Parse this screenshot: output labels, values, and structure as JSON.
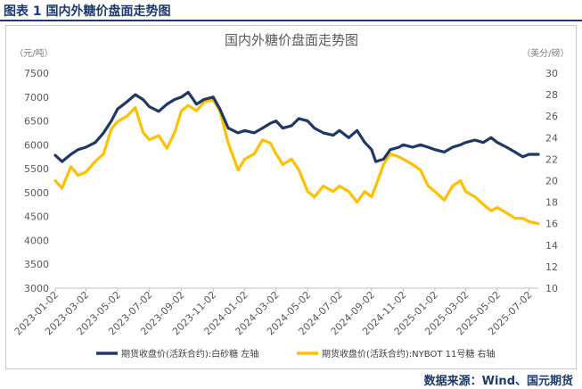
{
  "figure": {
    "label": "图表 1 国内外糖价盘面走势图",
    "source": "数据来源：Wind、国元期货"
  },
  "chart_data": {
    "type": "line",
    "title": "国内外糖价盘面走势图",
    "left_unit": "（元/吨）",
    "right_unit": "（美分/磅）",
    "ylim_left": [
      3000,
      7500
    ],
    "ylim_right": [
      10,
      30
    ],
    "left_ticks": [
      "3000",
      "3500",
      "4000",
      "4500",
      "5000",
      "5500",
      "6000",
      "6500",
      "7000",
      "7500"
    ],
    "right_ticks": [
      "10",
      "12",
      "14",
      "16",
      "18",
      "20",
      "22",
      "24",
      "26",
      "28",
      "30"
    ],
    "x_ticks": [
      "2023-01-02",
      "2023-03-02",
      "2023-05-02",
      "2023-07-02",
      "2023-09-02",
      "2023-11-02",
      "2024-01-02",
      "2024-03-02",
      "2024-05-02",
      "2024-07-02",
      "2024-09-02",
      "2024-11-02",
      "2025-01-02",
      "2025-03-02",
      "2025-05-02",
      "2025-07-02"
    ],
    "x_range": [
      "2023-01-02",
      "2025-07-20"
    ],
    "grid": false,
    "legend_position": "bottom",
    "series": [
      {
        "name": "期货收盘价(活跃合约):白砂糖  左轴",
        "axis": "left",
        "color": "#1f3864",
        "points": [
          [
            "2023-01-02",
            5780
          ],
          [
            "2023-01-15",
            5650
          ],
          [
            "2023-02-01",
            5800
          ],
          [
            "2023-02-15",
            5900
          ],
          [
            "2023-03-02",
            5950
          ],
          [
            "2023-03-20",
            6050
          ],
          [
            "2023-04-05",
            6250
          ],
          [
            "2023-04-20",
            6500
          ],
          [
            "2023-05-02",
            6750
          ],
          [
            "2023-05-20",
            6900
          ],
          [
            "2023-06-05",
            7050
          ],
          [
            "2023-06-20",
            6950
          ],
          [
            "2023-07-02",
            6800
          ],
          [
            "2023-07-20",
            6700
          ],
          [
            "2023-08-05",
            6850
          ],
          [
            "2023-08-20",
            6950
          ],
          [
            "2023-09-02",
            7000
          ],
          [
            "2023-09-15",
            7100
          ],
          [
            "2023-10-01",
            6850
          ],
          [
            "2023-10-15",
            6950
          ],
          [
            "2023-11-02",
            7000
          ],
          [
            "2023-11-15",
            6750
          ],
          [
            "2023-12-01",
            6350
          ],
          [
            "2023-12-20",
            6250
          ],
          [
            "2024-01-02",
            6300
          ],
          [
            "2024-01-20",
            6250
          ],
          [
            "2024-02-05",
            6350
          ],
          [
            "2024-02-20",
            6450
          ],
          [
            "2024-03-02",
            6500
          ],
          [
            "2024-03-15",
            6350
          ],
          [
            "2024-04-01",
            6400
          ],
          [
            "2024-04-15",
            6550
          ],
          [
            "2024-05-02",
            6500
          ],
          [
            "2024-05-15",
            6350
          ],
          [
            "2024-06-01",
            6250
          ],
          [
            "2024-06-20",
            6200
          ],
          [
            "2024-07-02",
            6300
          ],
          [
            "2024-07-20",
            6150
          ],
          [
            "2024-08-05",
            6300
          ],
          [
            "2024-08-20",
            6050
          ],
          [
            "2024-09-02",
            5900
          ],
          [
            "2024-09-10",
            5650
          ],
          [
            "2024-09-25",
            5700
          ],
          [
            "2024-10-08",
            5900
          ],
          [
            "2024-10-25",
            5950
          ],
          [
            "2024-11-02",
            6000
          ],
          [
            "2024-11-20",
            5950
          ],
          [
            "2024-12-05",
            6000
          ],
          [
            "2024-12-20",
            5950
          ],
          [
            "2025-01-02",
            5900
          ],
          [
            "2025-01-20",
            5850
          ],
          [
            "2025-02-05",
            5950
          ],
          [
            "2025-02-20",
            6000
          ],
          [
            "2025-03-02",
            6050
          ],
          [
            "2025-03-20",
            6100
          ],
          [
            "2025-04-05",
            6050
          ],
          [
            "2025-04-20",
            6150
          ],
          [
            "2025-05-02",
            6050
          ],
          [
            "2025-05-20",
            5950
          ],
          [
            "2025-06-05",
            5850
          ],
          [
            "2025-06-20",
            5750
          ],
          [
            "2025-07-02",
            5800
          ],
          [
            "2025-07-20",
            5800
          ]
        ]
      },
      {
        "name": "期货收盘价(活跃合约):NYBOT 11号糖  右轴",
        "axis": "right",
        "color": "#ffc000",
        "points": [
          [
            "2023-01-02",
            20.0
          ],
          [
            "2023-01-15",
            19.3
          ],
          [
            "2023-02-01",
            21.3
          ],
          [
            "2023-02-15",
            20.5
          ],
          [
            "2023-03-02",
            20.8
          ],
          [
            "2023-03-20",
            21.8
          ],
          [
            "2023-04-05",
            22.5
          ],
          [
            "2023-04-20",
            24.8
          ],
          [
            "2023-05-02",
            25.5
          ],
          [
            "2023-05-20",
            26.0
          ],
          [
            "2023-06-05",
            26.8
          ],
          [
            "2023-06-20",
            24.5
          ],
          [
            "2023-07-02",
            23.8
          ],
          [
            "2023-07-20",
            24.2
          ],
          [
            "2023-08-05",
            23.0
          ],
          [
            "2023-08-20",
            24.5
          ],
          [
            "2023-09-02",
            26.5
          ],
          [
            "2023-09-15",
            27.0
          ],
          [
            "2023-10-01",
            26.5
          ],
          [
            "2023-10-15",
            27.3
          ],
          [
            "2023-11-02",
            27.5
          ],
          [
            "2023-11-15",
            26.5
          ],
          [
            "2023-12-01",
            23.5
          ],
          [
            "2023-12-20",
            21.0
          ],
          [
            "2024-01-02",
            22.0
          ],
          [
            "2024-01-20",
            22.5
          ],
          [
            "2024-02-05",
            23.8
          ],
          [
            "2024-02-20",
            23.5
          ],
          [
            "2024-03-02",
            22.5
          ],
          [
            "2024-03-15",
            21.5
          ],
          [
            "2024-04-01",
            22.0
          ],
          [
            "2024-04-15",
            21.0
          ],
          [
            "2024-05-02",
            19.0
          ],
          [
            "2024-05-15",
            18.5
          ],
          [
            "2024-06-01",
            19.5
          ],
          [
            "2024-06-20",
            19.0
          ],
          [
            "2024-07-02",
            19.5
          ],
          [
            "2024-07-20",
            19.0
          ],
          [
            "2024-08-05",
            18.0
          ],
          [
            "2024-08-20",
            19.0
          ],
          [
            "2024-09-02",
            18.5
          ],
          [
            "2024-09-10",
            19.5
          ],
          [
            "2024-09-25",
            21.5
          ],
          [
            "2024-10-08",
            22.5
          ],
          [
            "2024-10-25",
            22.2
          ],
          [
            "2024-11-02",
            22.0
          ],
          [
            "2024-11-20",
            21.5
          ],
          [
            "2024-12-05",
            21.0
          ],
          [
            "2024-12-20",
            19.5
          ],
          [
            "2025-01-02",
            19.0
          ],
          [
            "2025-01-20",
            18.2
          ],
          [
            "2025-02-05",
            19.5
          ],
          [
            "2025-02-20",
            20.0
          ],
          [
            "2025-03-02",
            19.0
          ],
          [
            "2025-03-20",
            18.5
          ],
          [
            "2025-04-05",
            17.8
          ],
          [
            "2025-04-20",
            17.2
          ],
          [
            "2025-05-02",
            17.5
          ],
          [
            "2025-05-20",
            17.0
          ],
          [
            "2025-06-05",
            16.5
          ],
          [
            "2025-06-20",
            16.5
          ],
          [
            "2025-07-02",
            16.2
          ],
          [
            "2025-07-20",
            16.0
          ]
        ]
      }
    ]
  }
}
